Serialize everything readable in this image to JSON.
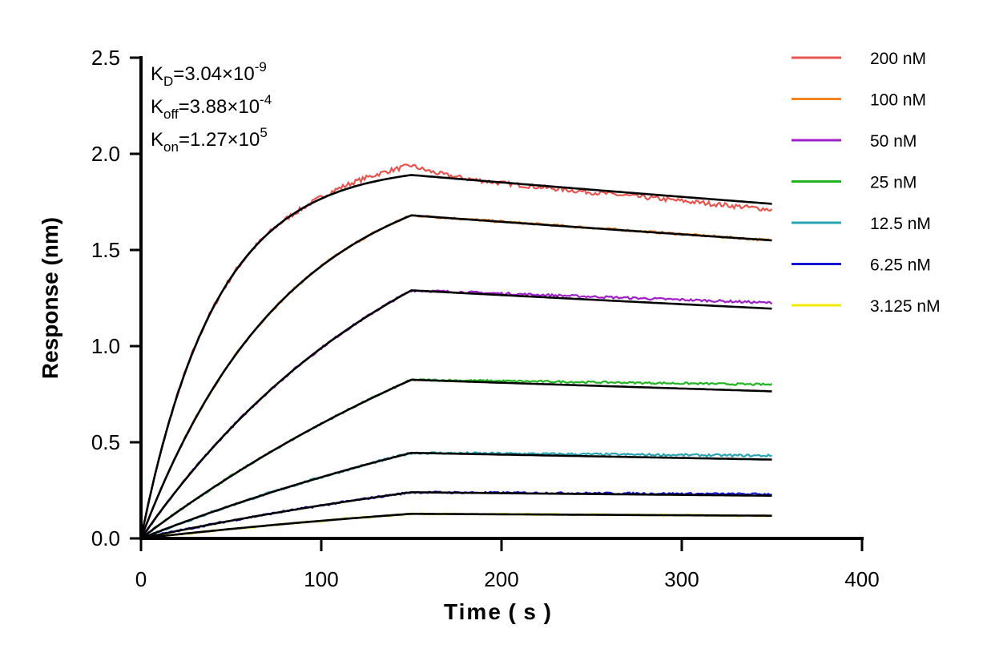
{
  "chart_data": {
    "type": "line",
    "title": "",
    "xlabel": "Time ( s )",
    "ylabel": "Response (nm)",
    "xlim": [
      0,
      400
    ],
    "ylim": [
      0,
      2.5
    ],
    "xticks": [
      0,
      100,
      200,
      300,
      400
    ],
    "xtick_labels": [
      "0",
      "100",
      "200",
      "300",
      "400"
    ],
    "yticks": [
      0,
      0.5,
      1.0,
      1.5,
      2.0,
      2.5
    ],
    "ytick_labels": [
      "0.0",
      "0.5",
      "1.0",
      "1.5",
      "2.0",
      "2.5"
    ],
    "grid": false,
    "legend_position": "top-right",
    "association_end": 150,
    "dissociation_end": 350,
    "annotations": [
      {
        "base": "K",
        "sub": "D",
        "rest": "=3.04×10",
        "sup": "-9"
      },
      {
        "base": "K",
        "sub": "off",
        "rest": "=3.88×10",
        "sup": "-4"
      },
      {
        "base": "K",
        "sub": "on",
        "rest": "=1.27×10",
        "sup": "5"
      }
    ],
    "fit_color": "#000000",
    "series": [
      {
        "name": "200 nM",
        "color": "#e8554e",
        "plateau": 1.89,
        "end": 1.74,
        "data_end": 1.72,
        "noise": 0.012
      },
      {
        "name": "100 nM",
        "color": "#f5841f",
        "plateau": 1.68,
        "end": 1.55,
        "data_end": 1.55,
        "noise": 0.006
      },
      {
        "name": "50 nM",
        "color": "#a020c8",
        "plateau": 1.29,
        "end": 1.195,
        "data_end": 1.225,
        "noise": 0.006
      },
      {
        "name": "25 nM",
        "color": "#22b522",
        "plateau": 0.825,
        "end": 0.765,
        "data_end": 0.8,
        "noise": 0.005
      },
      {
        "name": "12.5 nM",
        "color": "#2aa5b5",
        "plateau": 0.445,
        "end": 0.41,
        "data_end": 0.43,
        "noise": 0.006
      },
      {
        "name": "6.25 nM",
        "color": "#1414d2",
        "plateau": 0.24,
        "end": 0.222,
        "data_end": 0.23,
        "noise": 0.005
      },
      {
        "name": "3.125 nM",
        "color": "#f2ea00",
        "plateau": 0.128,
        "end": 0.118,
        "data_end": 0.118,
        "noise": 0.004
      }
    ]
  }
}
